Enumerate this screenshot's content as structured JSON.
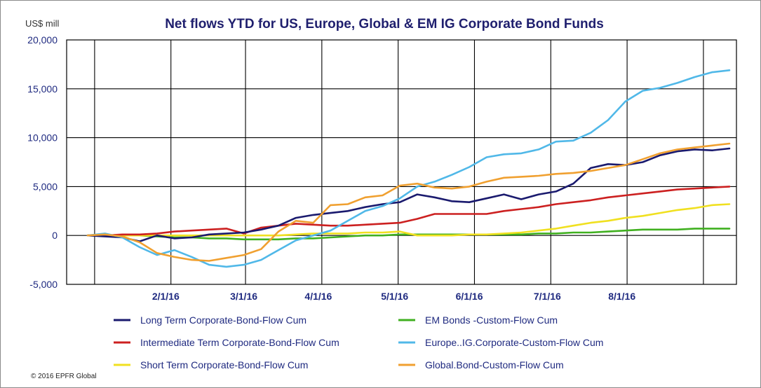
{
  "chart_data": {
    "type": "line",
    "title": "Net flows YTD for US, Europe, Global & EM IG Corporate Bond Funds",
    "ylabel": "US$ mill",
    "xlabel": "",
    "ylim": [
      -5000,
      20000
    ],
    "yticks": [
      20000,
      15000,
      10000,
      5000,
      0,
      -5000
    ],
    "ytick_labels": [
      "20,000",
      "15,000",
      "10,000",
      "5,000",
      "0",
      "-5,000"
    ],
    "xlim": [
      0,
      38
    ],
    "x_tick_positions": [
      4.5,
      9,
      13.3,
      17.7,
      22,
      26.5,
      30.8
    ],
    "x_tick_labels": [
      "2/1/16",
      "3/1/16",
      "4/1/16",
      "5/1/16",
      "6/1/16",
      "7/1/16",
      "8/1/16"
    ],
    "gridlines_x": [
      0.4,
      4.8,
      9.1,
      13.5,
      17.9,
      22.3,
      26.7,
      31.1,
      35.5
    ],
    "grid": true,
    "x": [
      0,
      1,
      2,
      3,
      4,
      5,
      6,
      7,
      8,
      9,
      10,
      11,
      12,
      13,
      14,
      15,
      16,
      17,
      18,
      19,
      20,
      21,
      22,
      23,
      24,
      25,
      26,
      27,
      28,
      29,
      30,
      31,
      32,
      33,
      34,
      35,
      36,
      37
    ],
    "series": [
      {
        "name": "Long Term Corporate-Bond-Flow Cum",
        "color": "#1a1a6e",
        "values": [
          0,
          -100,
          -200,
          -600,
          0,
          -300,
          -200,
          100,
          200,
          300,
          600,
          1000,
          1800,
          2100,
          2300,
          2500,
          2900,
          3200,
          3400,
          4200,
          3900,
          3500,
          3400,
          3800,
          4200,
          3700,
          4200,
          4500,
          5300,
          6900,
          7300,
          7200,
          7500,
          8200,
          8600,
          8800,
          8700,
          8900
        ]
      },
      {
        "name": "Intermediate Term Corporate-Bond-Flow Cum",
        "color": "#cc2020",
        "values": [
          0,
          0,
          100,
          100,
          200,
          400,
          500,
          600,
          700,
          200,
          800,
          1000,
          1200,
          1100,
          1000,
          1000,
          1100,
          1200,
          1300,
          1700,
          2200,
          2200,
          2200,
          2200,
          2500,
          2700,
          2900,
          3200,
          3400,
          3600,
          3900,
          4100,
          4300,
          4500,
          4700,
          4800,
          4900,
          5000
        ]
      },
      {
        "name": "Short Term Corporate-Bond-Flow Cum",
        "color": "#f0e020",
        "values": [
          0,
          0,
          0,
          0,
          0,
          0,
          0,
          0,
          0,
          0,
          0,
          0,
          100,
          200,
          200,
          200,
          300,
          300,
          400,
          0,
          0,
          0,
          100,
          100,
          200,
          300,
          500,
          700,
          1000,
          1300,
          1500,
          1800,
          2000,
          2300,
          2600,
          2800,
          3100,
          3200
        ]
      },
      {
        "name": "EM Bonds -Custom-Flow Cum",
        "color": "#40b020",
        "values": [
          0,
          0,
          0,
          0,
          -100,
          -200,
          -200,
          -300,
          -300,
          -400,
          -400,
          -400,
          -300,
          -300,
          -200,
          -100,
          0,
          0,
          100,
          100,
          100,
          100,
          100,
          100,
          100,
          100,
          200,
          200,
          300,
          300,
          400,
          500,
          600,
          600,
          600,
          700,
          700,
          700
        ]
      },
      {
        "name": "Europe..IG.Corporate-Custom-Flow Cum",
        "color": "#50b8e8",
        "values": [
          0,
          200,
          -200,
          -1200,
          -2000,
          -1500,
          -2200,
          -3000,
          -3200,
          -3000,
          -2500,
          -1500,
          -500,
          0,
          500,
          1500,
          2500,
          3000,
          3800,
          5000,
          5500,
          6200,
          7000,
          8000,
          8300,
          8400,
          8800,
          9600,
          9700,
          10500,
          11800,
          13700,
          14800,
          15100,
          15600,
          16200,
          16700,
          16900
        ]
      },
      {
        "name": "Global.Bond-Custom-Flow Cum",
        "color": "#f0a030",
        "values": [
          0,
          100,
          -100,
          -700,
          -1800,
          -2200,
          -2500,
          -2600,
          -2300,
          -2000,
          -1400,
          400,
          1500,
          1300,
          3100,
          3200,
          3900,
          4100,
          5100,
          5300,
          4900,
          4800,
          5000,
          5500,
          5900,
          6000,
          6100,
          6300,
          6400,
          6600,
          6900,
          7200,
          7800,
          8400,
          8800,
          9000,
          9200,
          9400
        ]
      }
    ],
    "legend_position": "bottom",
    "copyright": "© 2016 EPFR Global"
  }
}
